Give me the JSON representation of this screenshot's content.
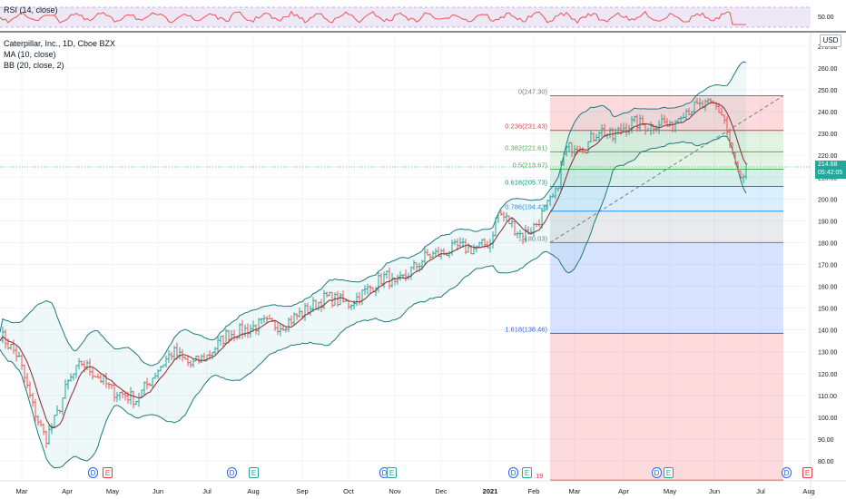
{
  "rsi": {
    "label": "RSI (14, close)",
    "axis_values": [
      "50.00"
    ]
  },
  "legend": {
    "symbol": "Caterpillar, Inc., 1D, Cboe BZX",
    "ma": "MA (10, close)",
    "bb": "BB (20, close, 2)"
  },
  "currency": "USD",
  "price_axis": {
    "top_label": "270.00",
    "labels": [
      "260.00",
      "250.00",
      "240.00",
      "230.00",
      "220.00",
      "210.00",
      "200.00",
      "190.00",
      "180.00",
      "170.00",
      "160.00",
      "150.00",
      "140.00",
      "130.00",
      "120.00",
      "110.00",
      "100.00",
      "90.00",
      "80.00"
    ]
  },
  "current_price": {
    "line1": "214.68",
    "line2": "05:42:05"
  },
  "time_axis": [
    "Mar",
    "Apr",
    "May",
    "Jun",
    "Jul",
    "Aug",
    "Sep",
    "Oct",
    "Nov",
    "Dec",
    "2021",
    "Feb",
    "Mar",
    "Apr",
    "May",
    "Jun",
    "Jul",
    "Aug"
  ],
  "fib_levels": [
    {
      "label": "0(247.30)",
      "value": 247.3,
      "color": "#787b86"
    },
    {
      "label": "0.236(231.43)",
      "value": 231.43,
      "color": "#f23645"
    },
    {
      "label": "0.382(221.61)",
      "value": 221.61,
      "color": "#4caf50"
    },
    {
      "label": "0.5(213.67)",
      "value": 213.67,
      "color": "#4caf50"
    },
    {
      "label": "0.618(205.73)",
      "value": 205.73,
      "color": "#089981"
    },
    {
      "label": "0.786(194.43)",
      "value": 194.43,
      "color": "#2196f3"
    },
    {
      "label": "1(180.03)",
      "value": 180.03,
      "color": "#787b86"
    },
    {
      "label": "1.618(138.46)",
      "value": 138.46,
      "color": "#2962ff"
    },
    {
      "label": "2.618(71.19)",
      "value": 71.19,
      "color": "#f23645"
    }
  ],
  "fib_label_visible": ".19",
  "events": [
    {
      "type": "d",
      "text": "D"
    },
    {
      "type": "e",
      "text": "E"
    },
    {
      "type": "d",
      "text": "D"
    },
    {
      "type": "e g",
      "text": "E"
    },
    {
      "type": "d",
      "text": "D"
    },
    {
      "type": "e g",
      "text": "E"
    },
    {
      "type": "d",
      "text": "D"
    },
    {
      "type": "e g",
      "text": "E"
    },
    {
      "type": "d",
      "text": "D"
    },
    {
      "type": "e g",
      "text": "E"
    },
    {
      "type": "d",
      "text": "D"
    },
    {
      "type": "e",
      "text": "E"
    }
  ],
  "colors": {
    "up": "#26a69a",
    "down": "#ef5350",
    "ma": "#8b3a3a",
    "bb": "#1f7a7a",
    "rsi": "#ef5350",
    "rsi_band": "#7e57c2"
  }
}
